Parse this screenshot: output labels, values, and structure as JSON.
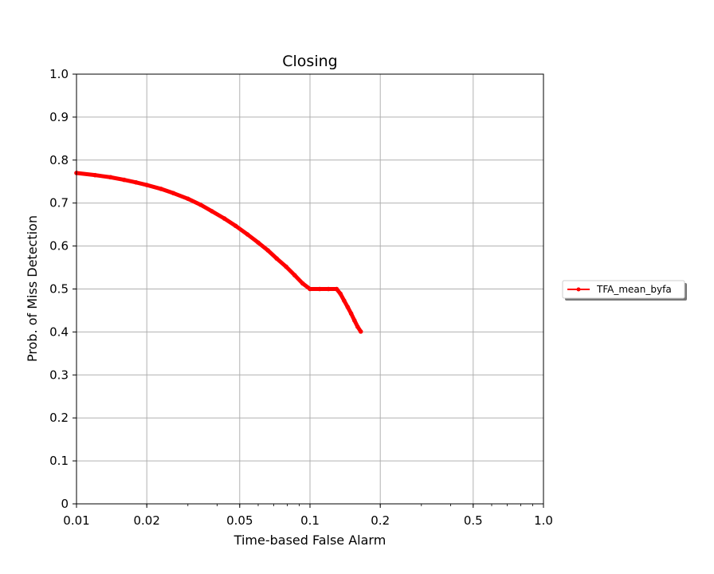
{
  "chart_data": {
    "type": "line",
    "title": "Closing",
    "xlabel": "Time-based False Alarm",
    "ylabel": "Prob. of Miss Detection",
    "xscale": "log",
    "xlim": [
      0.01,
      1.0
    ],
    "ylim": [
      0,
      1.0
    ],
    "grid": true,
    "legend_position": "outside-right",
    "xticks": [
      {
        "value": 0.01,
        "label": "0.01"
      },
      {
        "value": 0.02,
        "label": "0.02"
      },
      {
        "value": 0.05,
        "label": "0.05"
      },
      {
        "value": 0.1,
        "label": "0.1"
      },
      {
        "value": 0.2,
        "label": "0.2"
      },
      {
        "value": 0.5,
        "label": "0.5"
      },
      {
        "value": 1.0,
        "label": "1.0"
      }
    ],
    "yticks": [
      {
        "value": 0,
        "label": "0"
      },
      {
        "value": 0.1,
        "label": "0.1"
      },
      {
        "value": 0.2,
        "label": "0.2"
      },
      {
        "value": 0.3,
        "label": "0.3"
      },
      {
        "value": 0.4,
        "label": "0.4"
      },
      {
        "value": 0.5,
        "label": "0.5"
      },
      {
        "value": 0.6,
        "label": "0.6"
      },
      {
        "value": 0.7,
        "label": "0.7"
      },
      {
        "value": 0.8,
        "label": "0.8"
      },
      {
        "value": 0.9,
        "label": "0.9"
      },
      {
        "value": 1.0,
        "label": "1.0"
      }
    ],
    "series": [
      {
        "name": "TFA_mean_byfa",
        "color": "#ff0000",
        "x": [
          0.01,
          0.012,
          0.014,
          0.016,
          0.018,
          0.02,
          0.023,
          0.026,
          0.03,
          0.034,
          0.038,
          0.043,
          0.048,
          0.054,
          0.06,
          0.066,
          0.072,
          0.079,
          0.086,
          0.093,
          0.1,
          0.11,
          0.12,
          0.13,
          0.135,
          0.14,
          0.145,
          0.15,
          0.155,
          0.16,
          0.165
        ],
        "y": [
          0.77,
          0.765,
          0.76,
          0.754,
          0.748,
          0.742,
          0.733,
          0.723,
          0.71,
          0.696,
          0.681,
          0.664,
          0.647,
          0.627,
          0.608,
          0.59,
          0.571,
          0.552,
          0.532,
          0.513,
          0.5,
          0.5,
          0.5,
          0.5,
          0.489,
          0.473,
          0.458,
          0.443,
          0.427,
          0.412,
          0.401
        ]
      }
    ]
  }
}
